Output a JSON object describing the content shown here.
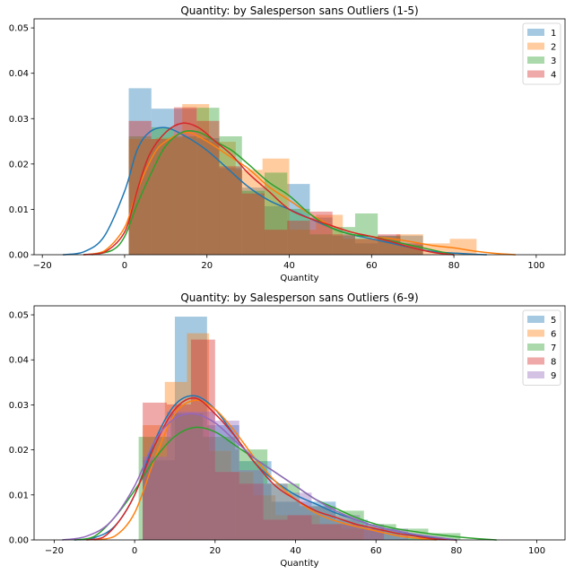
{
  "chart_data": [
    {
      "type": "histogram",
      "title": "Quantity: by Salesperson sans Outliers (1-5)",
      "xlabel": "Quantity",
      "ylabel": "",
      "xlim": [
        -22,
        107
      ],
      "ylim": [
        0,
        0.052
      ],
      "xticks": [
        -20,
        0,
        20,
        40,
        60,
        80,
        100
      ],
      "yticks": [
        0.0,
        0.01,
        0.02,
        0.03,
        0.04,
        0.05
      ],
      "xtick_labels": [
        "−20",
        "0",
        "20",
        "40",
        "60",
        "80",
        "100"
      ],
      "ytick_labels": [
        "0.00",
        "0.01",
        "0.02",
        "0.03",
        "0.04",
        "0.05"
      ],
      "grid": false,
      "legend_position": "top-right",
      "bar_alpha": 0.4,
      "series": [
        {
          "name": "1",
          "color": "#1f77b4",
          "bin_edges": [
            1,
            6.5,
            12,
            17.5,
            23,
            28.5,
            34,
            39.5,
            45,
            50.5,
            56,
            61.5,
            67,
            72.5
          ],
          "values": [
            0.0367,
            0.0322,
            0.0322,
            0.0257,
            0.0191,
            0.0148,
            0.0107,
            0.0156,
            0.0082,
            0.0042,
            0.0025,
            0.0042,
            0.0042
          ],
          "kde": [
            [
              -15,
              0
            ],
            [
              -10,
              0.0006
            ],
            [
              -5,
              0.004
            ],
            [
              0,
              0.014
            ],
            [
              3,
              0.023
            ],
            [
              6,
              0.027
            ],
            [
              10,
              0.028
            ],
            [
              15,
              0.026
            ],
            [
              20,
              0.023
            ],
            [
              25,
              0.019
            ],
            [
              30,
              0.015
            ],
            [
              35,
              0.012
            ],
            [
              40,
              0.01
            ],
            [
              45,
              0.008
            ],
            [
              50,
              0.006
            ],
            [
              55,
              0.0045
            ],
            [
              60,
              0.0035
            ],
            [
              65,
              0.0025
            ],
            [
              70,
              0.0015
            ],
            [
              75,
              0.0007
            ],
            [
              85,
              0.0001
            ],
            [
              88,
              0
            ]
          ]
        },
        {
          "name": "2",
          "color": "#ff7f0e",
          "bin_edges": [
            1,
            7.5,
            14,
            20.5,
            27,
            33.5,
            40,
            46.5,
            53,
            59.5,
            66,
            72.5,
            79,
            85.5
          ],
          "values": [
            0.0255,
            0.0258,
            0.0332,
            0.0249,
            0.0187,
            0.0212,
            0.0055,
            0.0088,
            0.0035,
            0.0035,
            0.0045,
            0.0025,
            0.0035
          ],
          "kde": [
            [
              -10,
              0
            ],
            [
              -5,
              0.0008
            ],
            [
              0,
              0.006
            ],
            [
              3,
              0.014
            ],
            [
              7,
              0.022
            ],
            [
              10,
              0.025
            ],
            [
              15,
              0.027
            ],
            [
              20,
              0.025
            ],
            [
              25,
              0.022
            ],
            [
              30,
              0.019
            ],
            [
              35,
              0.015
            ],
            [
              40,
              0.012
            ],
            [
              45,
              0.009
            ],
            [
              50,
              0.0065
            ],
            [
              55,
              0.005
            ],
            [
              60,
              0.004
            ],
            [
              65,
              0.0035
            ],
            [
              70,
              0.0028
            ],
            [
              75,
              0.002
            ],
            [
              80,
              0.0015
            ],
            [
              85,
              0.0008
            ],
            [
              90,
              0.0003
            ],
            [
              95,
              0
            ]
          ]
        },
        {
          "name": "3",
          "color": "#2ca02c",
          "bin_edges": [
            1,
            6.5,
            12,
            17.5,
            23,
            28.5,
            34,
            39.5,
            45,
            50.5,
            56,
            61.5,
            67,
            72.5
          ],
          "values": [
            0.0261,
            0.0281,
            0.0261,
            0.0324,
            0.0261,
            0.0141,
            0.0181,
            0.0101,
            0.0045,
            0.0061,
            0.0091,
            0.0041,
            0.0021
          ],
          "kde": [
            [
              -8,
              0
            ],
            [
              -3,
              0.001
            ],
            [
              0,
              0.004
            ],
            [
              3,
              0.011
            ],
            [
              7,
              0.019
            ],
            [
              10,
              0.024
            ],
            [
              14,
              0.027
            ],
            [
              18,
              0.027
            ],
            [
              22,
              0.025
            ],
            [
              26,
              0.023
            ],
            [
              30,
              0.02
            ],
            [
              35,
              0.016
            ],
            [
              40,
              0.013
            ],
            [
              45,
              0.009
            ],
            [
              50,
              0.006
            ],
            [
              55,
              0.0045
            ],
            [
              60,
              0.004
            ],
            [
              65,
              0.003
            ],
            [
              70,
              0.002
            ],
            [
              75,
              0.001
            ],
            [
              80,
              0
            ]
          ]
        },
        {
          "name": "4",
          "color": "#d62728",
          "bin_edges": [
            1,
            6.5,
            12,
            17.5,
            23,
            28.5,
            34,
            39.5,
            45,
            50.5,
            56,
            61.5,
            67,
            72.5
          ],
          "values": [
            0.0295,
            0.0255,
            0.0325,
            0.0295,
            0.0195,
            0.0135,
            0.0055,
            0.0075,
            0.0095,
            0.0045,
            0.0035,
            0.0045,
            0.0025
          ],
          "kde": [
            [
              -10,
              0
            ],
            [
              -5,
              0.0005
            ],
            [
              0,
              0.005
            ],
            [
              3,
              0.014
            ],
            [
              6,
              0.022
            ],
            [
              10,
              0.027
            ],
            [
              14,
              0.029
            ],
            [
              18,
              0.028
            ],
            [
              22,
              0.025
            ],
            [
              26,
              0.022
            ],
            [
              30,
              0.018
            ],
            [
              35,
              0.014
            ],
            [
              40,
              0.01
            ],
            [
              45,
              0.008
            ],
            [
              50,
              0.0065
            ],
            [
              55,
              0.005
            ],
            [
              60,
              0.004
            ],
            [
              65,
              0.0028
            ],
            [
              70,
              0.0015
            ],
            [
              75,
              0.0005
            ],
            [
              80,
              0
            ]
          ]
        }
      ]
    },
    {
      "type": "histogram",
      "title": "Quantity: by Salesperson sans Outliers (6-9)",
      "xlabel": "Quantity",
      "ylabel": "",
      "xlim": [
        -25,
        107
      ],
      "ylim": [
        0,
        0.052
      ],
      "xticks": [
        -20,
        0,
        20,
        40,
        60,
        80,
        100
      ],
      "yticks": [
        0.0,
        0.01,
        0.02,
        0.03,
        0.04,
        0.05
      ],
      "xtick_labels": [
        "−20",
        "0",
        "20",
        "40",
        "60",
        "80",
        "100"
      ],
      "ytick_labels": [
        "0.00",
        "0.01",
        "0.02",
        "0.03",
        "0.04",
        "0.05"
      ],
      "grid": false,
      "legend_position": "top-right",
      "bar_alpha": 0.4,
      "series": [
        {
          "name": "5",
          "color": "#1f77b4",
          "bin_edges": [
            2,
            10,
            18,
            26,
            34,
            42,
            50,
            58,
            66,
            74
          ],
          "values": [
            0.0177,
            0.0496,
            0.0255,
            0.0175,
            0.0085,
            0.0085,
            0.0045,
            0.0025,
            0.0005
          ],
          "kde": [
            [
              -15,
              0
            ],
            [
              -10,
              0.0005
            ],
            [
              -5,
              0.003
            ],
            [
              0,
              0.01
            ],
            [
              5,
              0.022
            ],
            [
              10,
              0.03
            ],
            [
              15,
              0.032
            ],
            [
              20,
              0.029
            ],
            [
              25,
              0.023
            ],
            [
              30,
              0.017
            ],
            [
              35,
              0.013
            ],
            [
              40,
              0.01
            ],
            [
              45,
              0.008
            ],
            [
              50,
              0.006
            ],
            [
              55,
              0.0045
            ],
            [
              60,
              0.003
            ],
            [
              65,
              0.002
            ],
            [
              70,
              0.001
            ],
            [
              75,
              0.0004
            ],
            [
              80,
              0
            ]
          ]
        },
        {
          "name": "6",
          "color": "#ff7f0e",
          "bin_edges": [
            2,
            7.5,
            13,
            18.5,
            24,
            29.5,
            35,
            40.5,
            46,
            51.5,
            57
          ],
          "values": [
            0.0255,
            0.0351,
            0.0459,
            0.0198,
            0.0151,
            0.0099,
            0.0055,
            0.0055,
            0.0035,
            0.0025
          ],
          "kde": [
            [
              -10,
              0
            ],
            [
              -5,
              0.0008
            ],
            [
              0,
              0.006
            ],
            [
              5,
              0.018
            ],
            [
              10,
              0.028
            ],
            [
              15,
              0.031
            ],
            [
              20,
              0.029
            ],
            [
              25,
              0.024
            ],
            [
              30,
              0.018
            ],
            [
              35,
              0.013
            ],
            [
              40,
              0.009
            ],
            [
              45,
              0.006
            ],
            [
              50,
              0.0042
            ],
            [
              55,
              0.003
            ],
            [
              60,
              0.002
            ],
            [
              65,
              0.001
            ],
            [
              70,
              0.0004
            ],
            [
              75,
              0
            ]
          ]
        },
        {
          "name": "7",
          "color": "#2ca02c",
          "bin_edges": [
            1,
            9,
            17,
            25,
            33,
            41,
            49,
            57,
            65,
            73,
            81
          ],
          "values": [
            0.0229,
            0.0281,
            0.0229,
            0.0201,
            0.0125,
            0.0075,
            0.0065,
            0.0035,
            0.0025,
            0.0015
          ],
          "kde": [
            [
              -15,
              0
            ],
            [
              -10,
              0.0008
            ],
            [
              -5,
              0.005
            ],
            [
              0,
              0.011
            ],
            [
              5,
              0.018
            ],
            [
              10,
              0.023
            ],
            [
              15,
              0.025
            ],
            [
              20,
              0.024
            ],
            [
              25,
              0.021
            ],
            [
              30,
              0.018
            ],
            [
              35,
              0.015
            ],
            [
              40,
              0.012
            ],
            [
              45,
              0.009
            ],
            [
              50,
              0.007
            ],
            [
              55,
              0.005
            ],
            [
              60,
              0.0035
            ],
            [
              65,
              0.0025
            ],
            [
              70,
              0.0018
            ],
            [
              75,
              0.0012
            ],
            [
              80,
              0.0007
            ],
            [
              85,
              0.0003
            ],
            [
              90,
              0
            ]
          ]
        },
        {
          "name": "8",
          "color": "#d62728",
          "bin_edges": [
            2,
            8,
            14,
            20,
            26,
            32,
            38,
            44,
            50,
            56,
            62
          ],
          "values": [
            0.0305,
            0.0301,
            0.0445,
            0.0151,
            0.0125,
            0.0045,
            0.0055,
            0.0035,
            0.0035,
            0.0025
          ],
          "kde": [
            [
              -12,
              0
            ],
            [
              -8,
              0.0005
            ],
            [
              -4,
              0.004
            ],
            [
              0,
              0.01
            ],
            [
              5,
              0.021
            ],
            [
              10,
              0.029
            ],
            [
              15,
              0.0315
            ],
            [
              20,
              0.028
            ],
            [
              25,
              0.023
            ],
            [
              30,
              0.017
            ],
            [
              35,
              0.012
            ],
            [
              40,
              0.009
            ],
            [
              45,
              0.0065
            ],
            [
              50,
              0.005
            ],
            [
              55,
              0.0035
            ],
            [
              60,
              0.0025
            ],
            [
              65,
              0.0015
            ],
            [
              70,
              0.0008
            ],
            [
              75,
              0.0002
            ],
            [
              80,
              0
            ]
          ]
        },
        {
          "name": "9",
          "color": "#9467bd",
          "bin_edges": [
            2,
            8,
            14,
            20,
            26,
            32,
            38,
            44,
            50,
            56,
            62,
            68
          ],
          "values": [
            0.0185,
            0.0285,
            0.0285,
            0.0265,
            0.0155,
            0.0125,
            0.0105,
            0.0075,
            0.0055,
            0.0035,
            0.0025
          ],
          "kde": [
            [
              -18,
              0
            ],
            [
              -12,
              0.0008
            ],
            [
              -6,
              0.004
            ],
            [
              0,
              0.012
            ],
            [
              5,
              0.022
            ],
            [
              10,
              0.027
            ],
            [
              15,
              0.028
            ],
            [
              20,
              0.026
            ],
            [
              25,
              0.022
            ],
            [
              30,
              0.018
            ],
            [
              35,
              0.015
            ],
            [
              40,
              0.012
            ],
            [
              45,
              0.009
            ],
            [
              50,
              0.0065
            ],
            [
              55,
              0.0045
            ],
            [
              60,
              0.003
            ],
            [
              65,
              0.002
            ],
            [
              70,
              0.0012
            ],
            [
              75,
              0.0006
            ],
            [
              80,
              0
            ]
          ]
        }
      ]
    }
  ]
}
